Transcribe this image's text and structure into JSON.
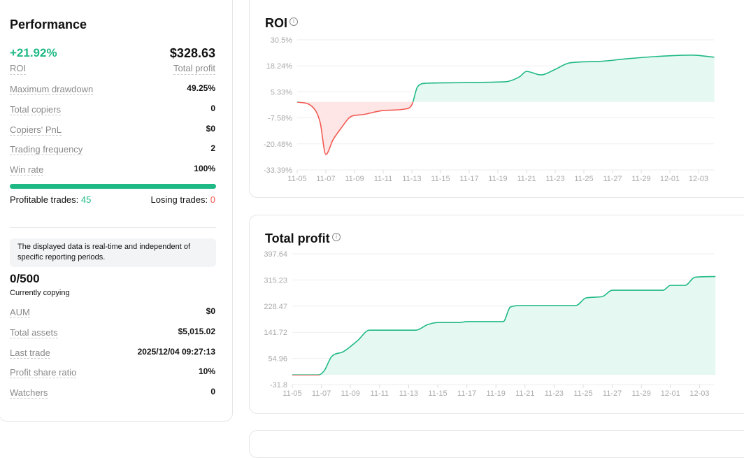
{
  "performance": {
    "title": "Performance",
    "roi_value": "+21.92%",
    "roi_label": "ROI",
    "profit_value": "$328.63",
    "profit_label": "Total profit",
    "rows": [
      {
        "label": "Maximum drawdown",
        "value": "49.25%"
      },
      {
        "label": "Total copiers",
        "value": "0"
      },
      {
        "label": "Copiers' PnL",
        "value": "$0"
      },
      {
        "label": "Trading frequency",
        "value": "2"
      },
      {
        "label": "Win rate",
        "value": "100%"
      }
    ],
    "win_rate_fraction": 1.0,
    "profitable_label": "Profitable trades:",
    "profitable_value": "45",
    "losing_label": "Losing trades:",
    "losing_value": "0",
    "notice": "The displayed data is real-time and independent of specific reporting periods.",
    "copying_value": "0/500",
    "copying_label": "Currently copying",
    "rows2": [
      {
        "label": "AUM",
        "value": "$0"
      },
      {
        "label": "Total assets",
        "value": "$5,015.02"
      },
      {
        "label": "Last trade",
        "value": "2025/12/04 09:27:13"
      },
      {
        "label": "Profit share ratio",
        "value": "10%"
      },
      {
        "label": "Watchers",
        "value": "0"
      }
    ]
  },
  "colors": {
    "green": "#1fb985",
    "red": "#f25a52",
    "green_fill": "#e5f8f1",
    "red_fill": "#fde6e5"
  },
  "chart_data": [
    {
      "type": "area",
      "title": "ROI",
      "ylabel": "%",
      "yticks": [
        "30.5%",
        "18.24%",
        "5.33%",
        "-7.58%",
        "-20.48%",
        "-33.39%"
      ],
      "ylim": [
        -33.39,
        30.5
      ],
      "xticks": [
        "11-05",
        "11-07",
        "11-09",
        "11-11",
        "11-13",
        "11-15",
        "11-17",
        "11-19",
        "11-21",
        "11-23",
        "11-25",
        "11-27",
        "11-29",
        "12-01",
        "12-03"
      ],
      "x_days": [
        0,
        1,
        1.6,
        2,
        2.5,
        3,
        3.8,
        4.5,
        6,
        7.5,
        8,
        8.4,
        9,
        14.5,
        15.5,
        16,
        17,
        18,
        19,
        21,
        23,
        25,
        27.5,
        29.1
      ],
      "values": [
        0,
        -2,
        -10,
        -25.8,
        -18.6,
        -13.5,
        -7,
        -6.3,
        -4.2,
        -3.5,
        -1.4,
        7.5,
        9.2,
        9.9,
        12.3,
        15,
        13.3,
        16,
        19.2,
        19.9,
        21.2,
        22.3,
        23,
        22
      ]
    },
    {
      "type": "area",
      "title": "Total profit",
      "yticks": [
        "397.64",
        "315.23",
        "228.47",
        "141.72",
        "54.96",
        "-31.8"
      ],
      "ylim": [
        -31.8,
        397.64
      ],
      "xticks": [
        "11-05",
        "11-07",
        "11-09",
        "11-11",
        "11-13",
        "11-15",
        "11-17",
        "11-19",
        "11-21",
        "11-23",
        "11-25",
        "11-27",
        "11-29",
        "12-01",
        "12-03"
      ],
      "x_days": [
        0,
        1.8,
        2.2,
        2.7,
        3.5,
        4.5,
        5.3,
        8.5,
        9.3,
        10,
        11.5,
        12,
        14.5,
        15,
        15.8,
        19.5,
        20.2,
        21.3,
        22,
        25.5,
        26,
        27,
        27.7,
        29.1
      ],
      "values": [
        0,
        0,
        14,
        60,
        76,
        113,
        147,
        147,
        165,
        172,
        172,
        175,
        175,
        223,
        228,
        228,
        253,
        257,
        278,
        278,
        294,
        294,
        321,
        323
      ]
    }
  ]
}
